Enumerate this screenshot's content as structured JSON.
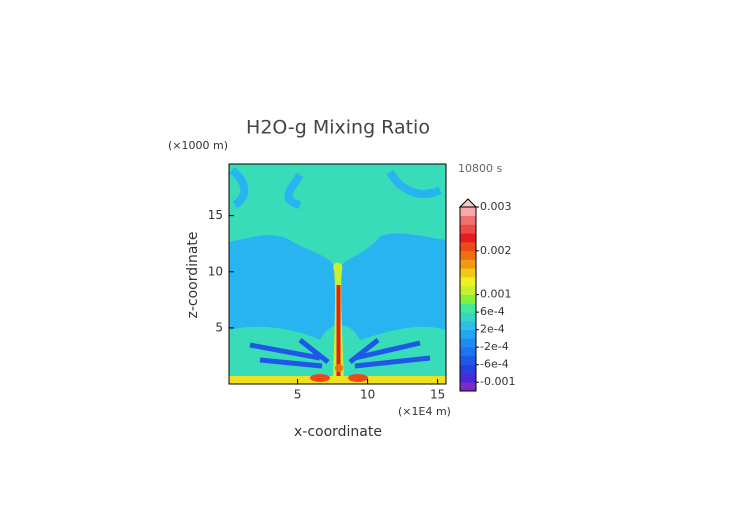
{
  "chart_data": {
    "type": "contour",
    "title": "H2O-g Mixing Ratio",
    "subtitle": "10800 s",
    "xlabel": "x-coordinate",
    "ylabel": "z-coordinate",
    "x_unit": "(×1E4 m)",
    "y_unit": "(×1000 m)",
    "xlim": [
      0.1,
      15.6
    ],
    "xticks": [
      5,
      10,
      15
    ],
    "ylim": [
      0,
      19.6
    ],
    "yticks": [
      5,
      10,
      15
    ],
    "colorbar": {
      "clim": [
        -0.0012,
        0.003
      ],
      "ticks": [
        0.003,
        0.002,
        0.001,
        {
          "value": 0.0006,
          "label": "6e-4"
        },
        {
          "value": 0.0002,
          "label": "2e-4"
        },
        {
          "value": -0.0002,
          "label": "-2e-4"
        },
        {
          "value": -0.0006,
          "label": "-6e-4"
        },
        -0.001
      ],
      "colors": [
        "#7a2bc8",
        "#4a2ad8",
        "#2a3fe0",
        "#1f58e8",
        "#1f72f0",
        "#1e8cf0",
        "#22a6f0",
        "#2ec0e8",
        "#34d8c0",
        "#46e89a",
        "#86f040",
        "#c4f030",
        "#f0f020",
        "#f0c818",
        "#f09a10",
        "#f07010",
        "#f04818",
        "#e81c1c",
        "#f04848",
        "#f07070",
        "#f8a8a8"
      ],
      "over_color": "#f8c4c4"
    }
  }
}
